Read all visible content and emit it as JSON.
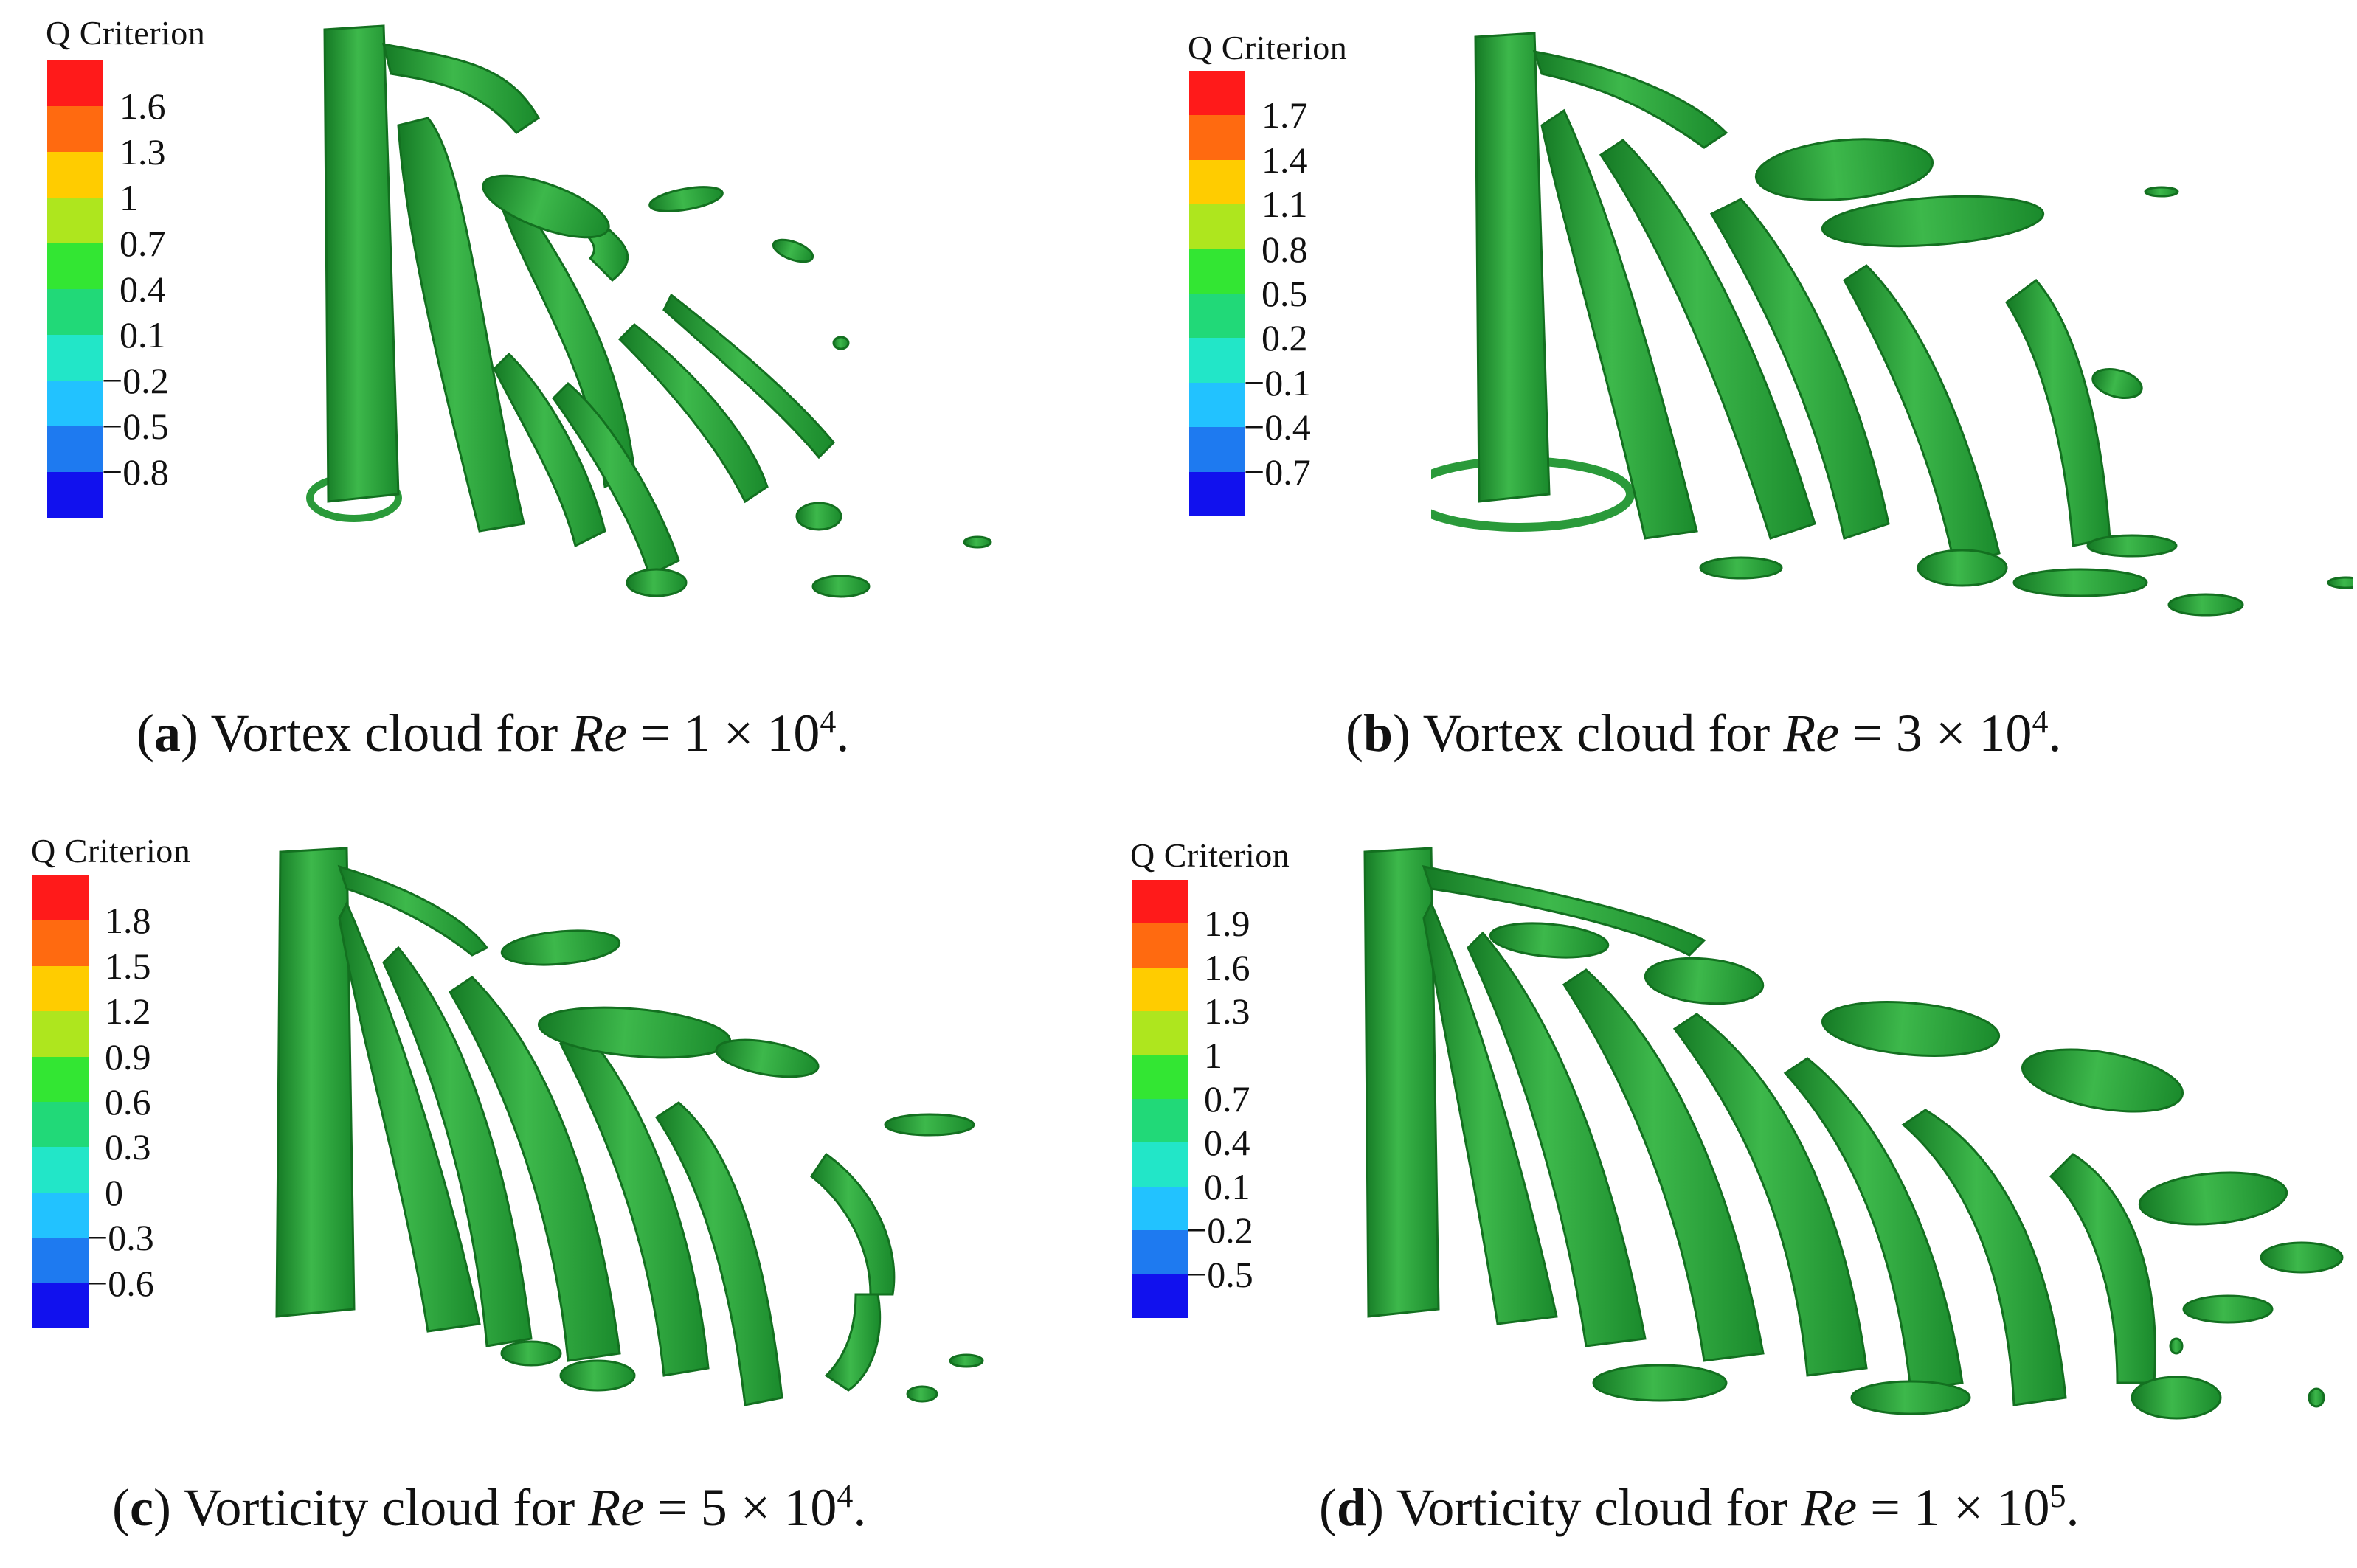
{
  "panels": [
    {
      "id": "a",
      "legend": {
        "title": "Q Criterion",
        "ticks": [
          "1.6",
          "1.3",
          "1",
          "0.7",
          "0.4",
          "0.1",
          "−0.2",
          "−0.5",
          "−0.8"
        ],
        "colors": [
          "#ff1a1a",
          "#ff6a10",
          "#ffcc00",
          "#aee61e",
          "#33e633",
          "#21d978",
          "#22e6c8",
          "#22c2ff",
          "#1e7af0",
          "#1111ee"
        ]
      },
      "caption": {
        "label": "a",
        "text_before": " Vortex cloud for ",
        "var": "Re",
        "text_eq": " = 1 × 10",
        "exp": "4",
        "end": "."
      }
    },
    {
      "id": "b",
      "legend": {
        "title": "Q Criterion",
        "ticks": [
          "1.7",
          "1.4",
          "1.1",
          "0.8",
          "0.5",
          "0.2",
          "−0.1",
          "−0.4",
          "−0.7"
        ],
        "colors": [
          "#ff1a1a",
          "#ff6a10",
          "#ffcc00",
          "#aee61e",
          "#33e633",
          "#21d978",
          "#22e6c8",
          "#22c2ff",
          "#1e7af0",
          "#1111ee"
        ]
      },
      "caption": {
        "label": "b",
        "text_before": " Vortex cloud for ",
        "var": "Re",
        "text_eq": " = 3 × 10",
        "exp": "4",
        "end": "."
      }
    },
    {
      "id": "c",
      "legend": {
        "title": "Q Criterion",
        "ticks": [
          "1.8",
          "1.5",
          "1.2",
          "0.9",
          "0.6",
          "0.3",
          "0",
          "−0.3",
          "−0.6"
        ],
        "colors": [
          "#ff1a1a",
          "#ff6a10",
          "#ffcc00",
          "#aee61e",
          "#33e633",
          "#21d978",
          "#22e6c8",
          "#22c2ff",
          "#1e7af0",
          "#1111ee"
        ]
      },
      "caption": {
        "label": "c",
        "text_before": " Vorticity cloud for ",
        "var": "Re",
        "text_eq": " = 5 × 10",
        "exp": "4",
        "end": "."
      }
    },
    {
      "id": "d",
      "legend": {
        "title": "Q Criterion",
        "ticks": [
          "1.9",
          "1.6",
          "1.3",
          "1",
          "0.7",
          "0.4",
          "0.1",
          "−0.2",
          "−0.5"
        ],
        "colors": [
          "#ff1a1a",
          "#ff6a10",
          "#ffcc00",
          "#aee61e",
          "#33e633",
          "#21d978",
          "#22e6c8",
          "#22c2ff",
          "#1e7af0",
          "#1111ee"
        ]
      },
      "caption": {
        "label": "d",
        "text_before": " Vorticity cloud for ",
        "var": "Re",
        "text_eq": " = 1 × 10",
        "exp": "5",
        "end": "."
      }
    }
  ],
  "colors": {
    "vortex_fill": "#2a9a3a",
    "vortex_light": "#4cc75a",
    "vortex_dark": "#157a25"
  }
}
